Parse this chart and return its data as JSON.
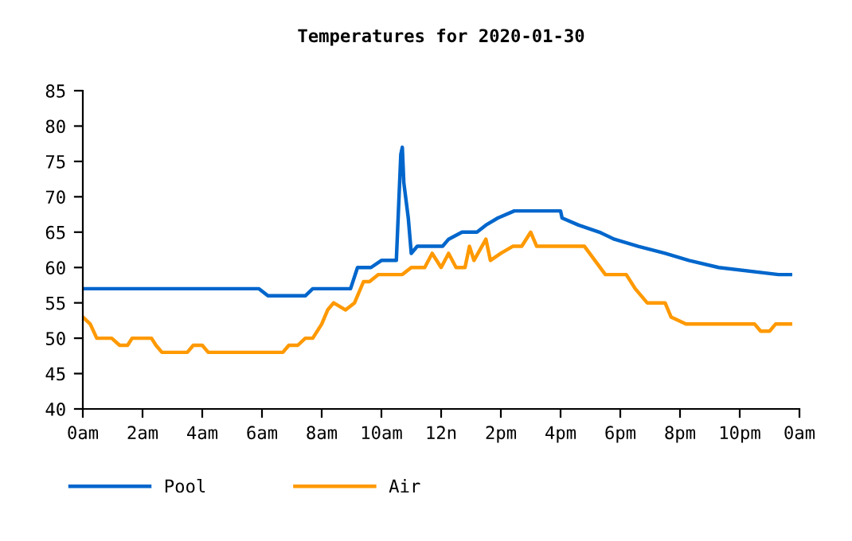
{
  "chart_data": {
    "type": "line",
    "title": "Temperatures for 2020-01-30",
    "xlim": [
      "2020-01-30T00:00",
      "2020-01-31T00:00"
    ],
    "xticks": [
      {
        "value": "2020-01-30T00:00",
        "label": "0am"
      },
      {
        "value": "2020-01-30T02:00",
        "label": "2am"
      },
      {
        "value": "2020-01-30T04:00",
        "label": "4am"
      },
      {
        "value": "2020-01-30T06:00",
        "label": "6am"
      },
      {
        "value": "2020-01-30T08:00",
        "label": "8am"
      },
      {
        "value": "2020-01-30T10:00",
        "label": "10am"
      },
      {
        "value": "2020-01-30T12:00",
        "label": "12n"
      },
      {
        "value": "2020-01-30T14:00",
        "label": "2pm"
      },
      {
        "value": "2020-01-30T16:00",
        "label": "4pm"
      },
      {
        "value": "2020-01-30T18:00",
        "label": "6pm"
      },
      {
        "value": "2020-01-30T20:00",
        "label": "8pm"
      },
      {
        "value": "2020-01-30T22:00",
        "label": "10pm"
      },
      {
        "value": "2020-01-31T00:00",
        "label": "0am"
      }
    ],
    "ylim": [
      40,
      85
    ],
    "yticks": [
      40,
      45,
      50,
      55,
      60,
      65,
      70,
      75,
      80,
      85
    ],
    "grid": false,
    "legend": "bottom left",
    "marker": "none",
    "line_style": "solid",
    "series": [
      {
        "name": "Pool",
        "color": "#0066cc",
        "x": [
          "2020-01-30T00:00",
          "2020-01-30T05:54",
          "2020-01-30T06:12",
          "2020-01-30T07:27",
          "2020-01-30T07:42",
          "2020-01-30T08:58",
          "2020-01-30T09:12",
          "2020-01-30T09:39",
          "2020-01-30T10:00",
          "2020-01-30T10:30",
          "2020-01-30T10:39",
          "2020-01-30T10:42",
          "2020-01-30T10:45",
          "2020-01-30T10:54",
          "2020-01-30T11:00",
          "2020-01-30T11:12",
          "2020-01-30T12:03",
          "2020-01-30T12:15",
          "2020-01-30T12:42",
          "2020-01-30T13:12",
          "2020-01-30T13:30",
          "2020-01-30T13:54",
          "2020-01-30T14:27",
          "2020-01-30T16:00",
          "2020-01-30T16:03",
          "2020-01-30T16:36",
          "2020-01-30T17:18",
          "2020-01-30T17:48",
          "2020-01-30T18:36",
          "2020-01-30T19:30",
          "2020-01-30T20:18",
          "2020-01-30T21:18",
          "2020-01-30T23:18",
          "2020-01-30T23:42"
        ],
        "values": [
          57,
          57,
          56,
          56,
          57,
          57,
          60,
          60,
          61,
          61,
          76,
          77,
          72,
          67,
          62,
          63,
          63,
          64,
          65,
          65,
          66,
          67,
          68,
          68,
          67,
          66,
          65,
          64,
          63,
          62,
          61,
          60,
          59,
          59
        ]
      },
      {
        "name": "Air",
        "color": "#ff9900",
        "x": [
          "2020-01-30T00:00",
          "2020-01-30T00:15",
          "2020-01-30T00:28",
          "2020-01-30T00:58",
          "2020-01-30T01:14",
          "2020-01-30T01:30",
          "2020-01-30T01:39",
          "2020-01-30T02:18",
          "2020-01-30T02:27",
          "2020-01-30T02:39",
          "2020-01-30T03:30",
          "2020-01-30T03:42",
          "2020-01-30T04:00",
          "2020-01-30T04:12",
          "2020-01-30T06:42",
          "2020-01-30T06:54",
          "2020-01-30T07:12",
          "2020-01-30T07:27",
          "2020-01-30T07:42",
          "2020-01-30T08:00",
          "2020-01-30T08:12",
          "2020-01-30T08:24",
          "2020-01-30T08:48",
          "2020-01-30T09:06",
          "2020-01-30T09:24",
          "2020-01-30T09:36",
          "2020-01-30T09:54",
          "2020-01-30T10:42",
          "2020-01-30T11:00",
          "2020-01-30T11:27",
          "2020-01-30T11:42",
          "2020-01-30T12:00",
          "2020-01-30T12:15",
          "2020-01-30T12:30",
          "2020-01-30T12:48",
          "2020-01-30T12:57",
          "2020-01-30T13:06",
          "2020-01-30T13:30",
          "2020-01-30T13:39",
          "2020-01-30T14:00",
          "2020-01-30T14:24",
          "2020-01-30T14:42",
          "2020-01-30T15:00",
          "2020-01-30T15:12",
          "2020-01-30T16:48",
          "2020-01-30T17:30",
          "2020-01-30T18:12",
          "2020-01-30T18:30",
          "2020-01-30T18:54",
          "2020-01-30T19:30",
          "2020-01-30T19:42",
          "2020-01-30T20:12",
          "2020-01-30T22:30",
          "2020-01-30T22:42",
          "2020-01-30T23:00",
          "2020-01-30T23:12",
          "2020-01-30T23:42"
        ],
        "values": [
          53,
          52,
          50,
          50,
          49,
          49,
          50,
          50,
          49,
          48,
          48,
          49,
          49,
          48,
          48,
          49,
          49,
          50,
          50,
          52,
          54,
          55,
          54,
          55,
          58,
          58,
          59,
          59,
          60,
          60,
          62,
          60,
          62,
          60,
          60,
          63,
          61,
          64,
          61,
          62,
          63,
          63,
          65,
          63,
          63,
          59,
          59,
          57,
          55,
          55,
          53,
          52,
          52,
          51,
          51,
          52,
          52
        ]
      }
    ]
  }
}
